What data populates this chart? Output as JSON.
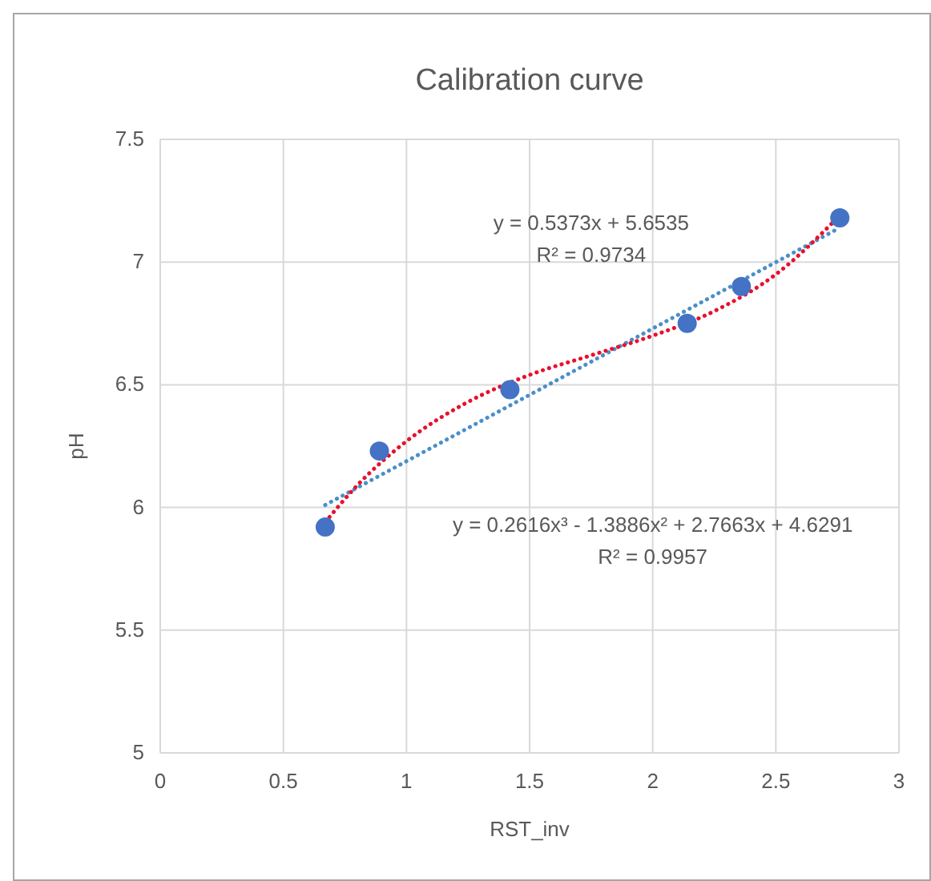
{
  "chart_data": {
    "type": "scatter",
    "title": "Calibration curve",
    "xlabel": "RST_inv",
    "ylabel": "pH",
    "xlim": [
      0,
      3
    ],
    "xticks": [
      0,
      0.5,
      1,
      1.5,
      2,
      2.5,
      3
    ],
    "ylim": [
      5,
      7.5
    ],
    "yticks": [
      5,
      5.5,
      6,
      6.5,
      7,
      7.5
    ],
    "grid": true,
    "marker": "circle",
    "series": [
      {
        "type": "scatter",
        "color": "#4472c4",
        "x": [
          0.67,
          0.89,
          1.42,
          2.14,
          2.36,
          2.76
        ],
        "values": [
          5.92,
          6.23,
          6.48,
          6.75,
          6.9,
          7.18
        ]
      },
      {
        "type": "line",
        "color": "#4a8fc9",
        "line_style": "dotted",
        "marker": "none",
        "x": [
          0.67,
          2.76
        ],
        "values": [
          6.01,
          7.14
        ]
      },
      {
        "type": "line",
        "color": "#e8112d",
        "line_style": "dotted",
        "marker": "none",
        "x": [
          0.67,
          0.8,
          1,
          1.25,
          1.5,
          1.75,
          2,
          2.25,
          2.5,
          2.76
        ],
        "values": [
          5.94,
          6.09,
          6.27,
          6.43,
          6.54,
          6.62,
          6.7,
          6.8,
          6.95,
          7.19
        ]
      }
    ],
    "annotations": [
      "y = 0.5373x + 5.6535",
      "R² = 0.9734",
      "y = 0.2616x³ - 1.3886x² + 2.7663x + 4.6291",
      "R² = 0.9957"
    ]
  }
}
